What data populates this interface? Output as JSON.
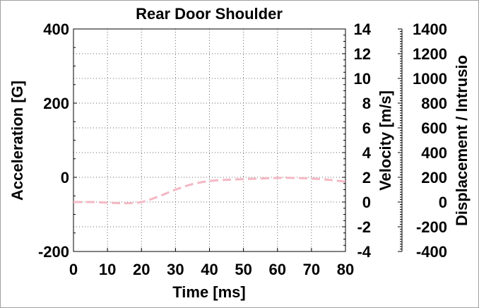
{
  "chart_data": {
    "type": "line",
    "title": "Rear Door Shoulder",
    "xlabel": "Time [ms]",
    "xlim": [
      0,
      80
    ],
    "xticks": [
      0,
      10,
      20,
      30,
      40,
      50,
      60,
      70,
      80
    ],
    "y_left": {
      "label": "Acceleration [G]",
      "lim": [
        -200,
        400
      ],
      "ticks": [
        -200,
        0,
        200,
        400
      ]
    },
    "y_right1": {
      "label": "Velocity [m/s]",
      "lim": [
        -4,
        14
      ],
      "ticks": [
        -4,
        -2,
        0,
        2,
        4,
        6,
        8,
        10,
        12,
        14
      ]
    },
    "y_right2": {
      "label": "Displacement / Intrusio",
      "lim": [
        -400,
        1400
      ],
      "ticks": [
        -400,
        -200,
        0,
        200,
        400,
        600,
        800,
        1000,
        1200,
        1400
      ]
    },
    "grid": true,
    "series": [
      {
        "axis": "velocity",
        "color": "#f4b8c4",
        "style": "dashed",
        "x": [
          0,
          5,
          10,
          15,
          20,
          25,
          30,
          35,
          40,
          45,
          50,
          55,
          60,
          65,
          70,
          75,
          80
        ],
        "y": [
          0.0,
          0.0,
          -0.05,
          -0.1,
          0.0,
          0.45,
          1.0,
          1.45,
          1.7,
          1.8,
          1.85,
          1.9,
          1.95,
          1.95,
          1.9,
          1.8,
          1.65
        ]
      }
    ]
  }
}
